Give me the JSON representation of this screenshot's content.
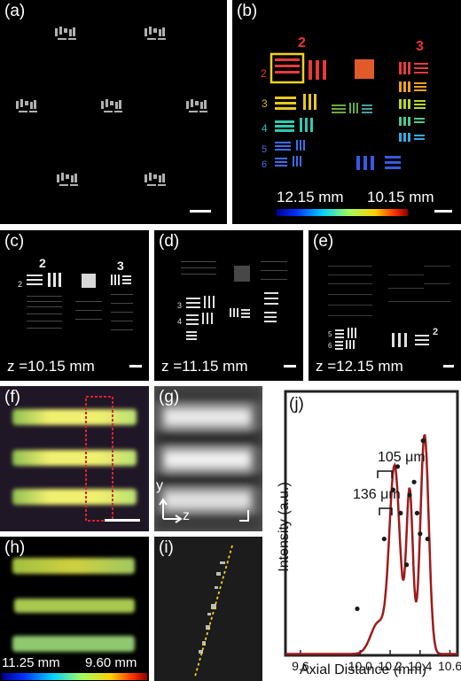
{
  "figure": {
    "panels": {
      "a": {
        "label": "(a)"
      },
      "b": {
        "label": "(b)",
        "colorbar_min": "12.15 mm",
        "colorbar_max": "10.15 mm",
        "group_labels": [
          "2",
          "3"
        ],
        "element_labels": [
          "2",
          "3",
          "4",
          "5",
          "6"
        ]
      },
      "c": {
        "label": "(c)",
        "z": "z =10.15 mm"
      },
      "d": {
        "label": "(d)",
        "z": "z =11.15 mm"
      },
      "e": {
        "label": "(e)",
        "z": "z =12.15 mm"
      },
      "f": {
        "label": "(f)"
      },
      "g": {
        "label": "(g)",
        "axis_y": "y",
        "axis_z": "z"
      },
      "h": {
        "label": "(h)",
        "colorbar_min": "11.25 mm",
        "colorbar_max": "9.60 mm"
      },
      "i": {
        "label": "(i)"
      },
      "j": {
        "label": "(j)"
      }
    },
    "colors": {
      "highlight_box": "#f2d21a",
      "dotted_roi": "#e0202a",
      "fit_line": "#a01818",
      "data_points": "#1a1a1a",
      "axis_line": "#ffffff"
    }
  },
  "chart_data": {
    "type": "line",
    "xlabel": "Axial Distance (mm)",
    "ylabel": "Intensity (a.u.)",
    "xlim": [
      9.5,
      10.65
    ],
    "ticks_x": [
      "9.6",
      "10.0",
      "10.2",
      "10.4",
      "10.6"
    ],
    "annotations": [
      "136 μm",
      "105 μm"
    ],
    "series": [
      {
        "x": [
          9.98,
          10.16,
          10.22,
          10.25,
          10.27,
          10.31,
          10.33,
          10.36,
          10.38,
          10.4,
          10.42,
          10.45
        ],
        "y": [
          0.18,
          0.45,
          0.64,
          0.73,
          0.55,
          0.35,
          0.62,
          0.67,
          0.55,
          0.47,
          0.83,
          0.45
        ]
      }
    ]
  }
}
